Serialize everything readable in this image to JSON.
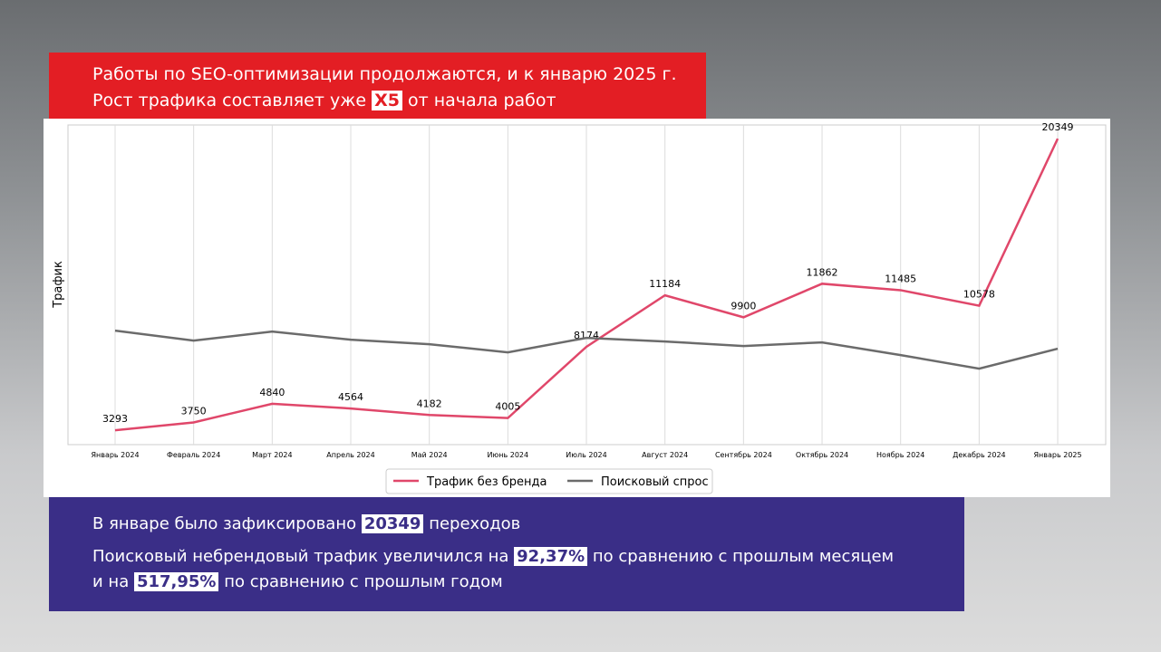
{
  "header": {
    "line1": "Работы по SEO-оптимизации продолжаются, и к январю 2025 г.",
    "line2_before": "Рост трафика составляет уже",
    "line2_highlight": "X5",
    "line2_after": "от начала работ"
  },
  "chart_data": {
    "type": "line",
    "y_label": "Трафик",
    "categories": [
      "Январь 2024",
      "Февраль 2024",
      "Март 2024",
      "Апрель 2024",
      "Май 2024",
      "Июнь 2024",
      "Июль 2024",
      "Август 2024",
      "Сентябрь 2024",
      "Октябрь 2024",
      "Ноябрь 2024",
      "Декабрь 2024",
      "Январь 2025"
    ],
    "series": [
      {
        "name": "Трафик без бренда",
        "color": "#e0476a",
        "labels": true,
        "values": [
          3293,
          3750,
          4840,
          4564,
          4182,
          4005,
          8174,
          11184,
          9900,
          11862,
          11485,
          10578,
          20349
        ]
      },
      {
        "name": "Поисковый спрос",
        "color": "#6b6b6b",
        "labels": false,
        "values": [
          9119,
          8537,
          9066,
          8590,
          8325,
          7848,
          8696,
          8484,
          8219,
          8431,
          7689,
          6895,
          8060
        ]
      }
    ],
    "ylim": [
      2450,
      21150
    ],
    "grid": true,
    "legend": "bottom"
  },
  "summary": {
    "p1_before": "В январе было зафиксировано",
    "p1_highlight": "20349",
    "p1_after": "переходов",
    "p2_before": "Поисковый небрендовый трафик увеличился на",
    "p2_highlight1": "92,37%",
    "p2_mid1": "по сравнению с прошлым месяцем",
    "p2_mid2": "и на",
    "p2_highlight2": "517,95%",
    "p2_after": "по сравнению с прошлым годом"
  }
}
